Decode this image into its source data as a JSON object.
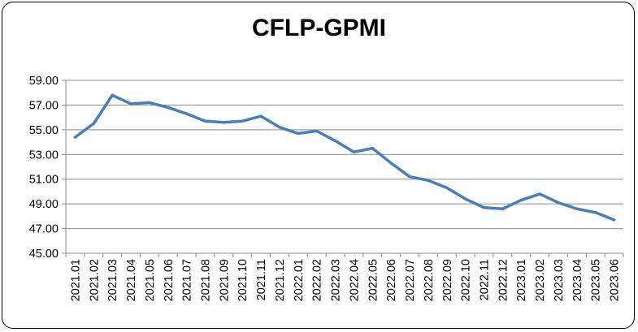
{
  "chart_data": {
    "type": "line",
    "title": "CFLP-GPMI",
    "xlabel": "",
    "ylabel": "",
    "ylim": [
      45.0,
      59.0
    ],
    "ytick_values": [
      45,
      47,
      49,
      51,
      53,
      55,
      57,
      59
    ],
    "ytick_labels": [
      "45.00",
      "47.00",
      "49.00",
      "51.00",
      "53.00",
      "55.00",
      "57.00",
      "59.00"
    ],
    "grid": "horizontal",
    "legend": "none",
    "categories": [
      "2021.01",
      "2021.02",
      "2021.03",
      "2021.04",
      "2021.05",
      "2021.06",
      "2021.07",
      "2021.08",
      "2021.09",
      "2021.10",
      "2021.11",
      "2021.12",
      "2022.01",
      "2022.02",
      "2022.03",
      "2022.04",
      "2022.05",
      "2022.06",
      "2022.07",
      "2022.08",
      "2022.09",
      "2022.10",
      "2022.11",
      "2022.12",
      "2023.01",
      "2023.02",
      "2023.03",
      "2023.04",
      "2023.05",
      "2023.06"
    ],
    "series": [
      {
        "color": "#4a7ebb",
        "values": [
          54.4,
          55.5,
          57.8,
          57.1,
          57.2,
          56.8,
          56.3,
          55.7,
          55.6,
          55.7,
          56.1,
          55.2,
          54.7,
          54.9,
          54.1,
          53.2,
          53.5,
          52.3,
          51.2,
          50.9,
          50.3,
          49.4,
          48.7,
          48.6,
          49.3,
          49.8,
          49.1,
          48.6,
          48.3,
          47.7
        ]
      }
    ]
  }
}
